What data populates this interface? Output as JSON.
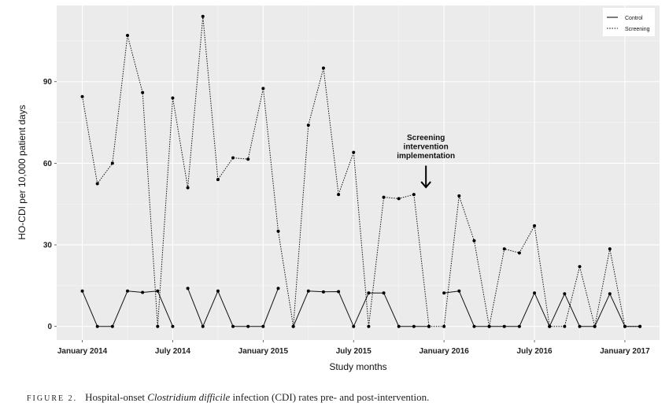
{
  "chart_data": {
    "type": "line",
    "x": [
      "2014-01",
      "2014-02",
      "2014-03",
      "2014-04",
      "2014-05",
      "2014-06",
      "2014-07",
      "2014-08",
      "2014-09",
      "2014-10",
      "2014-11",
      "2014-12",
      "2015-01",
      "2015-02",
      "2015-03",
      "2015-04",
      "2015-05",
      "2015-06",
      "2015-07",
      "2015-08",
      "2015-09",
      "2015-10",
      "2015-11",
      "2015-12",
      "2016-01",
      "2016-02",
      "2016-03",
      "2016-04",
      "2016-05",
      "2016-06",
      "2016-07",
      "2016-08",
      "2016-09",
      "2016-10",
      "2016-11",
      "2016-12",
      "2017-01",
      "2017-02"
    ],
    "series": [
      {
        "name": "Control",
        "style": "solid",
        "segments": [
          [
            0,
            7
          ],
          [
            7,
            14
          ],
          [
            14,
            24
          ],
          [
            24,
            38
          ]
        ],
        "values": [
          13,
          0,
          0,
          13,
          12.5,
          13,
          0,
          14,
          0,
          13,
          0,
          0,
          0,
          14,
          0,
          13,
          12.7,
          12.8,
          0,
          12.3,
          12.3,
          0,
          0,
          0,
          12.3,
          13,
          0,
          0,
          0,
          0,
          12.3,
          0,
          12,
          0,
          0,
          12,
          0,
          0
        ]
      },
      {
        "name": "Screening",
        "style": "dotted",
        "segments": [
          [
            0,
            38
          ]
        ],
        "values": [
          84.5,
          52.5,
          60,
          107,
          86,
          0,
          84,
          51,
          114,
          54,
          62,
          61.5,
          87.5,
          35,
          0,
          74,
          95,
          48.5,
          64,
          0,
          47.5,
          47,
          48.5,
          0,
          0,
          48,
          31.5,
          0,
          28.5,
          27,
          37,
          0,
          0,
          22,
          0,
          28.5,
          0,
          0
        ]
      }
    ],
    "xticks": [
      {
        "pos": 0,
        "label": "January 2014"
      },
      {
        "pos": 6,
        "label": "July 2014"
      },
      {
        "pos": 12,
        "label": "January 2015"
      },
      {
        "pos": 18,
        "label": "July 2015"
      },
      {
        "pos": 24,
        "label": "January 2016"
      },
      {
        "pos": 30,
        "label": "July 2016"
      },
      {
        "pos": 36,
        "label": "January 2017"
      }
    ],
    "yticks": [
      0,
      30,
      60,
      90
    ],
    "xlabel": "Study months",
    "ylabel": "HO-CDI per 10,000 patient days",
    "ylim": [
      -5,
      118
    ],
    "xlim": [
      -1.7,
      38.3
    ],
    "grid": true,
    "legend": {
      "position": "top-right",
      "entries": [
        "Control",
        "Screening"
      ]
    },
    "annotation": {
      "lines": [
        "Screening",
        "intervention",
        "implementation"
      ],
      "x": 22.8,
      "y": 50,
      "arrow_to_y": 50
    }
  },
  "caption": {
    "figure_label": "FIGURE 2.",
    "text_before": "Hospital-onset ",
    "text_italic": "Clostridium difficile",
    "text_after": " infection (CDI) rates pre- and post-intervention."
  }
}
